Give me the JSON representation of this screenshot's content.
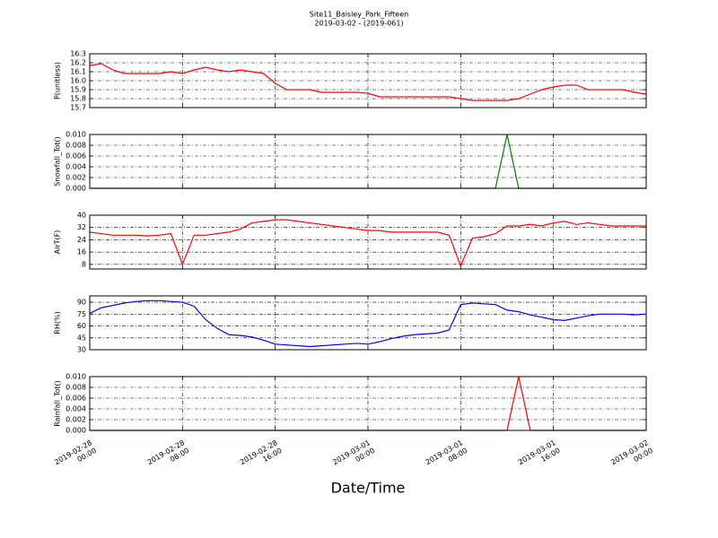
{
  "chart_data": {
    "type": "line",
    "title": "Site11_Baisley_Park_Fifteen",
    "subtitle": "2019-03-02 - (2019-061)",
    "xlabel": "Date/Time",
    "grid": true,
    "x": [
      "2019-02-28 00:00",
      "2019-02-28 01:00",
      "2019-02-28 02:00",
      "2019-02-28 03:00",
      "2019-02-28 04:00",
      "2019-02-28 05:00",
      "2019-02-28 06:00",
      "2019-02-28 07:00",
      "2019-02-28 08:00",
      "2019-02-28 09:00",
      "2019-02-28 10:00",
      "2019-02-28 11:00",
      "2019-02-28 12:00",
      "2019-02-28 13:00",
      "2019-02-28 14:00",
      "2019-02-28 15:00",
      "2019-02-28 16:00",
      "2019-02-28 17:00",
      "2019-02-28 18:00",
      "2019-02-28 19:00",
      "2019-02-28 20:00",
      "2019-02-28 21:00",
      "2019-02-28 22:00",
      "2019-02-28 23:00",
      "2019-03-01 00:00",
      "2019-03-01 01:00",
      "2019-03-01 02:00",
      "2019-03-01 03:00",
      "2019-03-01 04:00",
      "2019-03-01 05:00",
      "2019-03-01 06:00",
      "2019-03-01 07:00",
      "2019-03-01 08:00",
      "2019-03-01 09:00",
      "2019-03-01 10:00",
      "2019-03-01 11:00",
      "2019-03-01 12:00",
      "2019-03-01 13:00",
      "2019-03-01 14:00",
      "2019-03-01 15:00",
      "2019-03-01 16:00",
      "2019-03-01 17:00",
      "2019-03-01 18:00",
      "2019-03-01 19:00",
      "2019-03-01 20:00",
      "2019-03-01 21:00",
      "2019-03-01 22:00",
      "2019-03-01 23:00",
      "2019-03-02 00:00"
    ],
    "xlim": [
      "2019-02-28 00:00",
      "2019-03-02 00:00"
    ],
    "xticks": [
      {
        "value": "2019-02-28 00:00",
        "label": "2019-02-28\n00:00"
      },
      {
        "value": "2019-02-28 08:00",
        "label": "2019-02-28\n08:00"
      },
      {
        "value": "2019-02-28 16:00",
        "label": "2019-02-28\n16:00"
      },
      {
        "value": "2019-03-01 00:00",
        "label": "2019-03-01\n00:00"
      },
      {
        "value": "2019-03-01 08:00",
        "label": "2019-03-01\n08:00"
      },
      {
        "value": "2019-03-01 16:00",
        "label": "2019-03-01\n16:00"
      },
      {
        "value": "2019-03-02 00:00",
        "label": "2019-03-02\n00:00"
      }
    ],
    "panels": [
      {
        "ylabel": "P(unitless)",
        "ylim": [
          15.7,
          16.3
        ],
        "yticks": [
          15.7,
          15.8,
          15.9,
          {
            "value": 16,
            "label": "16.0"
          },
          16.1,
          16.2,
          16.3
        ],
        "series": [
          {
            "name": "P",
            "color": "#ff0000",
            "values": [
              16.17,
              16.19,
              16.12,
              16.08,
              16.08,
              16.08,
              16.08,
              16.1,
              16.08,
              16.12,
              16.15,
              16.12,
              16.1,
              16.12,
              16.1,
              16.08,
              15.97,
              15.9,
              15.9,
              15.9,
              15.87,
              15.87,
              15.87,
              15.87,
              15.86,
              15.82,
              15.82,
              15.82,
              15.82,
              15.82,
              15.82,
              15.82,
              15.8,
              15.78,
              15.78,
              15.78,
              15.78,
              15.8,
              15.85,
              15.9,
              15.93,
              15.95,
              15.95,
              15.9,
              15.9,
              15.9,
              15.9,
              15.87,
              15.85
            ]
          }
        ]
      },
      {
        "ylabel": "Snowfall_Tot()",
        "ylim": [
          0,
          0.01
        ],
        "yticks": [
          {
            "value": 0,
            "label": "0.000"
          },
          {
            "value": 0.002,
            "label": "0.002"
          },
          {
            "value": 0.004,
            "label": "0.004"
          },
          {
            "value": 0.006,
            "label": "0.006"
          },
          {
            "value": 0.008,
            "label": "0.008"
          },
          {
            "value": 0.01,
            "label": "0.010"
          }
        ],
        "series": [
          {
            "name": "Snowfall_Tot",
            "color": "#007f00",
            "values": [
              0,
              0,
              0,
              0,
              0,
              0,
              0,
              0,
              0,
              0,
              0,
              0,
              0,
              0,
              0,
              0,
              0,
              0,
              0,
              0,
              0,
              0,
              0,
              0,
              0,
              0,
              0,
              0,
              0,
              0,
              0,
              0,
              0,
              0,
              0,
              0,
              0.01,
              0,
              0,
              0,
              0,
              0,
              0,
              0,
              0,
              0,
              0,
              0,
              0
            ]
          }
        ]
      },
      {
        "ylabel": "AirT(F)",
        "ylim": [
          5,
          40
        ],
        "yticks": [
          8,
          16,
          24,
          32,
          40
        ],
        "series": [
          {
            "name": "AirT",
            "color": "#ff0000",
            "values": [
              29,
              28,
              27,
              27,
              27,
              26.5,
              27,
              28,
              8,
              27,
              27,
              28,
              29,
              31,
              35,
              36,
              37,
              37,
              36,
              35,
              34,
              33,
              32,
              31,
              30,
              30,
              29,
              29,
              29,
              29,
              29,
              27,
              7,
              25,
              26,
              28,
              33,
              33,
              34,
              33,
              35,
              36,
              34,
              35,
              34,
              33,
              33,
              33,
              33
            ]
          }
        ]
      },
      {
        "ylabel": "RH(%)",
        "ylim": [
          30,
          98
        ],
        "yticks": [
          30,
          45,
          60,
          75,
          90
        ],
        "series": [
          {
            "name": "RH",
            "color": "#0000ff",
            "values": [
              76,
              83,
              86,
              89,
              91,
              92,
              92,
              91,
              90,
              85,
              68,
              57,
              49,
              48,
              46,
              42,
              37,
              36,
              35,
              34,
              35,
              36,
              37,
              38,
              37,
              40,
              44,
              47,
              49,
              50,
              51,
              55,
              87,
              89,
              88,
              87,
              80,
              78,
              74,
              71,
              68,
              67,
              70,
              73,
              75,
              75,
              75,
              74,
              75
            ]
          }
        ]
      },
      {
        "ylabel": "Rainfall_Tot()",
        "ylim": [
          0,
          0.01
        ],
        "yticks": [
          {
            "value": 0,
            "label": "0.000"
          },
          {
            "value": 0.002,
            "label": "0.002"
          },
          {
            "value": 0.004,
            "label": "0.004"
          },
          {
            "value": 0.006,
            "label": "0.006"
          },
          {
            "value": 0.008,
            "label": "0.008"
          },
          {
            "value": 0.01,
            "label": "0.010"
          }
        ],
        "series": [
          {
            "name": "Rainfall_Tot",
            "color": "#ff0000",
            "values": [
              0,
              0,
              0,
              0,
              0,
              0,
              0,
              0,
              0,
              0,
              0,
              0,
              0,
              0,
              0,
              0,
              0,
              0,
              0,
              0,
              0,
              0,
              0,
              0,
              0,
              0,
              0,
              0,
              0,
              0,
              0,
              0,
              0,
              0,
              0,
              0,
              0,
              0.01,
              0,
              0,
              0,
              0,
              0,
              0,
              0,
              0,
              0,
              0,
              0
            ]
          }
        ]
      }
    ]
  }
}
